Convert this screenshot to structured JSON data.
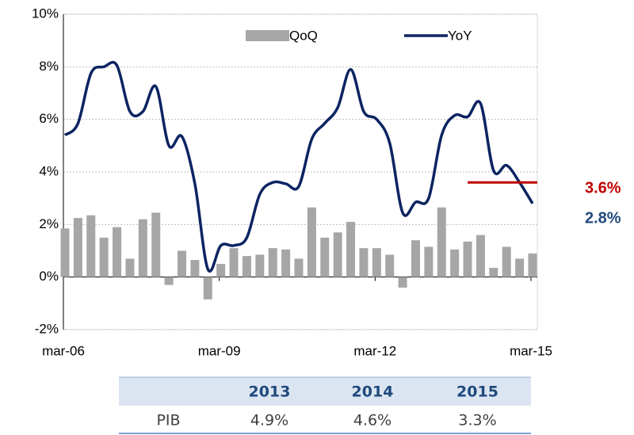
{
  "chart_data": {
    "type": "bar_line",
    "categories": [
      "mar-06",
      null,
      null,
      null,
      null,
      null,
      null,
      null,
      null,
      null,
      null,
      null,
      "mar-09",
      null,
      null,
      null,
      null,
      null,
      null,
      null,
      null,
      null,
      null,
      null,
      "mar-12",
      null,
      null,
      null,
      null,
      null,
      null,
      null,
      null,
      null,
      null,
      null,
      "mar-15"
    ],
    "series": [
      {
        "name": "QoQ",
        "type": "bar",
        "color": "#a6a6a6",
        "values": [
          1.85,
          2.25,
          2.35,
          1.5,
          1.9,
          0.7,
          2.2,
          2.45,
          -0.3,
          1.0,
          0.65,
          -0.85,
          0.5,
          1.1,
          0.8,
          0.85,
          1.1,
          1.05,
          0.7,
          2.65,
          1.5,
          1.7,
          2.1,
          1.1,
          1.1,
          0.85,
          -0.4,
          1.4,
          1.15,
          2.65,
          1.05,
          1.35,
          1.6,
          0.35,
          1.15,
          0.7,
          0.9
        ]
      },
      {
        "name": "YoY",
        "type": "line",
        "color": "#0c2461",
        "values": [
          5.4,
          5.85,
          7.75,
          8.0,
          8.05,
          6.3,
          6.3,
          7.25,
          5.0,
          5.35,
          3.55,
          0.3,
          1.2,
          1.2,
          1.5,
          3.15,
          3.6,
          3.55,
          3.45,
          5.25,
          5.85,
          6.45,
          7.9,
          6.3,
          6.0,
          5.1,
          2.45,
          2.85,
          3.0,
          5.4,
          6.15,
          6.1,
          6.6,
          4.05,
          4.25,
          3.6,
          2.8
        ],
        "value_labels": {
          "36": "2.8%"
        }
      }
    ],
    "reference_line": {
      "value": 3.6,
      "label": "3.6%",
      "color": "#c00000"
    },
    "ylim": [
      -2,
      10
    ],
    "yticks": [
      {
        "value": -2,
        "label": "-2%"
      },
      {
        "value": 0,
        "label": "0%"
      },
      {
        "value": 2,
        "label": "2%"
      },
      {
        "value": 4,
        "label": "4%"
      },
      {
        "value": 6,
        "label": "6%"
      },
      {
        "value": 8,
        "label": "8%"
      },
      {
        "value": 10,
        "label": "10%"
      }
    ],
    "grid": true,
    "legend": "top"
  },
  "table": {
    "columns": [
      "2013",
      "2014",
      "2015"
    ],
    "rows": [
      [
        "PIB",
        "4.9%",
        "4.6%",
        "3.3%"
      ]
    ]
  }
}
